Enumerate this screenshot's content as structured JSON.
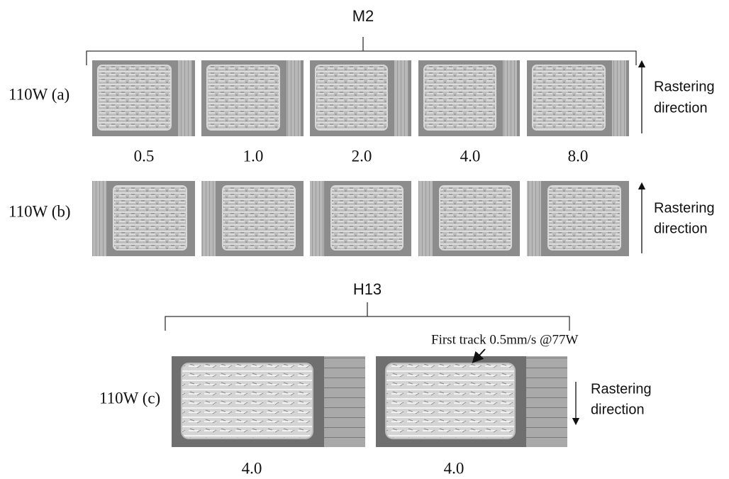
{
  "figure": {
    "groups": [
      {
        "title": "M2",
        "rows": [
          {
            "label": "110W (a)",
            "speeds": [
              "0.5",
              "1.0",
              "2.0",
              "4.0",
              "8.0"
            ],
            "direction": [
              "Rastering",
              "direction"
            ]
          },
          {
            "label": "110W (b)",
            "direction": [
              "Rastering",
              "direction"
            ]
          }
        ]
      },
      {
        "title": "H13",
        "rows": [
          {
            "label": "110W (c)",
            "annotation": "First track 0.5mm/s @77W",
            "speeds": [
              "4.0",
              "4.0"
            ],
            "direction": [
              "Rastering",
              "direction"
            ]
          }
        ]
      }
    ]
  }
}
